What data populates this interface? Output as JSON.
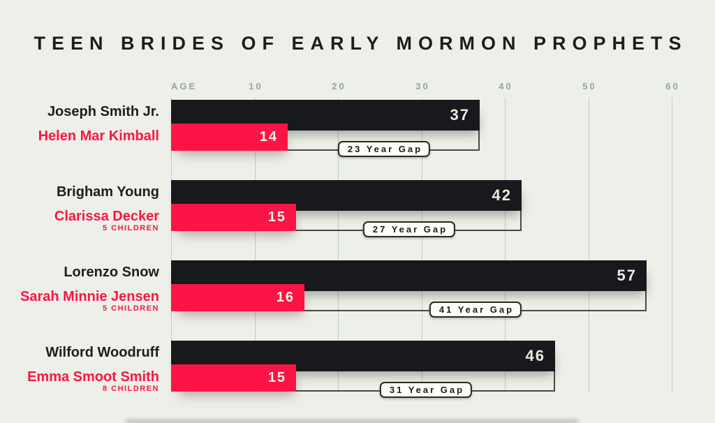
{
  "title": "TEEN BRIDES OF EARLY MORMON PROPHETS",
  "chart_data": {
    "type": "bar",
    "orientation": "horizontal",
    "title": "TEEN BRIDES OF EARLY MORMON PROPHETS",
    "axis": {
      "label": "AGE",
      "ticks": [
        10,
        20,
        30,
        40,
        50,
        60
      ],
      "range": [
        0,
        65
      ],
      "position": "top",
      "grid": true
    },
    "groups": [
      {
        "prophet": "Joseph Smith Jr.",
        "prophet_age": 37,
        "bride": "Helen Mar Kimball",
        "bride_age": 14,
        "children": null,
        "gap_label": "23 Year Gap"
      },
      {
        "prophet": "Brigham Young",
        "prophet_age": 42,
        "bride": "Clarissa Decker",
        "bride_age": 15,
        "children": "5 CHILDREN",
        "gap_label": "27 Year Gap"
      },
      {
        "prophet": "Lorenzo Snow",
        "prophet_age": 57,
        "bride": "Sarah Minnie Jensen",
        "bride_age": 16,
        "children": "5 CHILDREN",
        "gap_label": "41 Year Gap"
      },
      {
        "prophet": "Wilford Woodruff",
        "prophet_age": 46,
        "bride": "Emma Smoot Smith",
        "bride_age": 15,
        "children": "8 CHILDREN",
        "gap_label": "31 Year Gap"
      }
    ],
    "colors": {
      "background": "#edf0e8",
      "bar_dark": "#17191d",
      "bar_red": "#fc1446",
      "value_text": "#edeae3",
      "name_dark": "#1b1d21",
      "axis_text": "#9aa29a",
      "gridline": "#c3c9c0",
      "bracket": "#474a45",
      "gap_box_bg": "#fdfdf9",
      "gap_box_border": "#252823"
    }
  }
}
